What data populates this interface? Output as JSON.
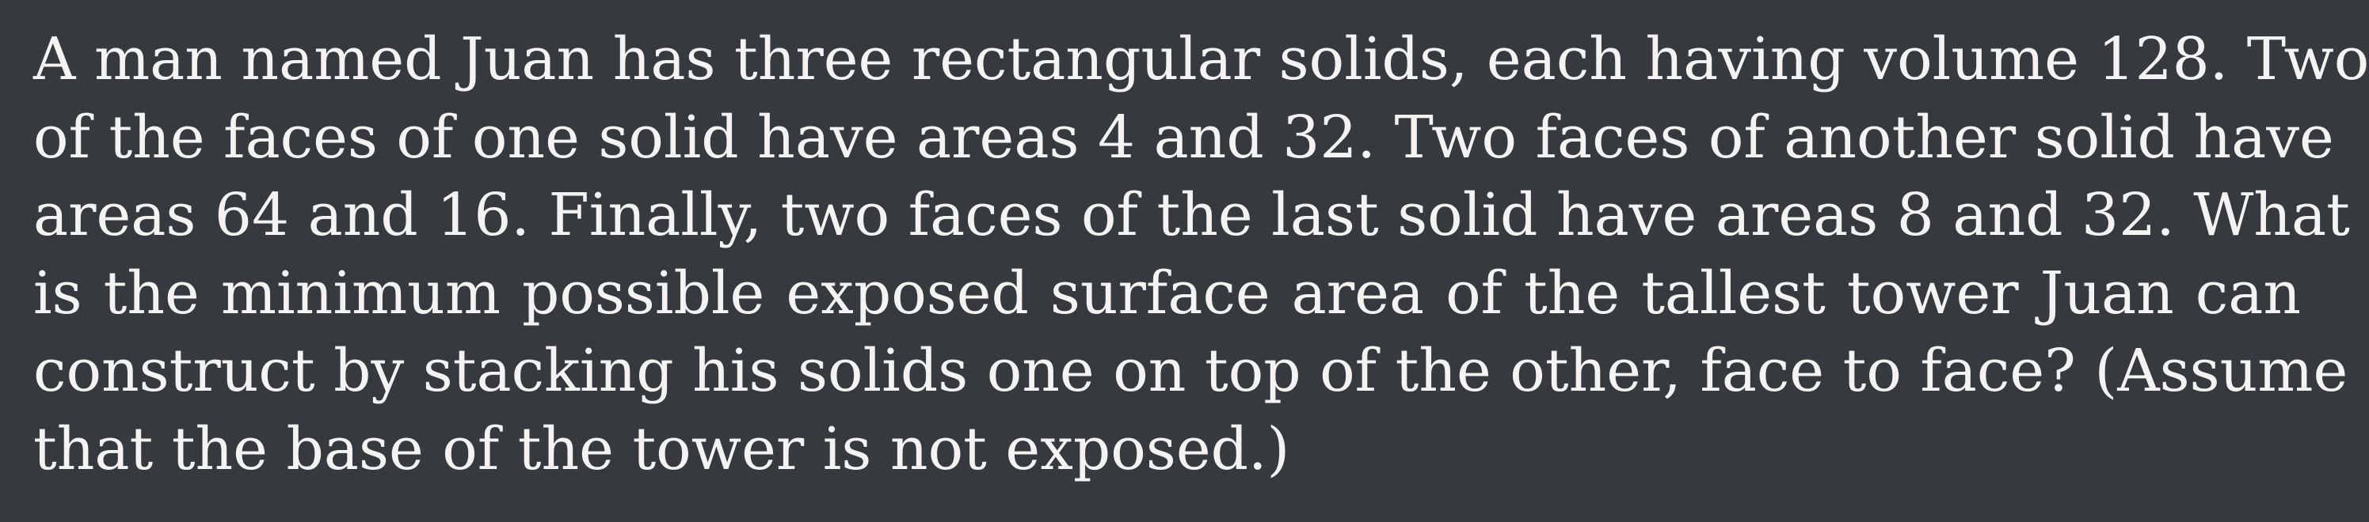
{
  "problem": {
    "lines": [
      "A man named Juan has three rectangular solids, each having volume 128. Two",
      "of the faces of one solid have areas 4 and 32. Two faces of another solid have",
      "areas 64 and 16. Finally, two faces of the last solid have areas 8 and 32. What",
      "is the minimum possible exposed surface area of the tallest tower Juan can",
      "construct by stacking his solids one on top of the other, face to face? (Assume",
      "that the base of the tower is not exposed.)"
    ]
  }
}
